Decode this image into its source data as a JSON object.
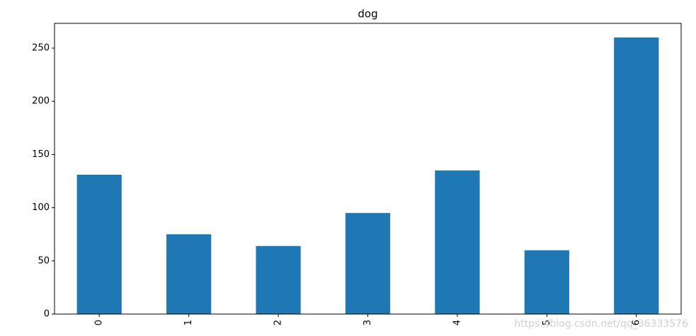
{
  "chart_data": {
    "type": "bar",
    "title": "dog",
    "categories": [
      "0",
      "1",
      "2",
      "3",
      "4",
      "5",
      "6"
    ],
    "values": [
      131,
      75,
      64,
      95,
      135,
      60,
      260
    ],
    "color": "#1f77b4",
    "ylim": [
      0,
      273.3
    ],
    "yticks": [
      0,
      50,
      100,
      150,
      200,
      250
    ],
    "grid": false,
    "watermark": "https://blog.csdn.net/qq_36333576"
  }
}
